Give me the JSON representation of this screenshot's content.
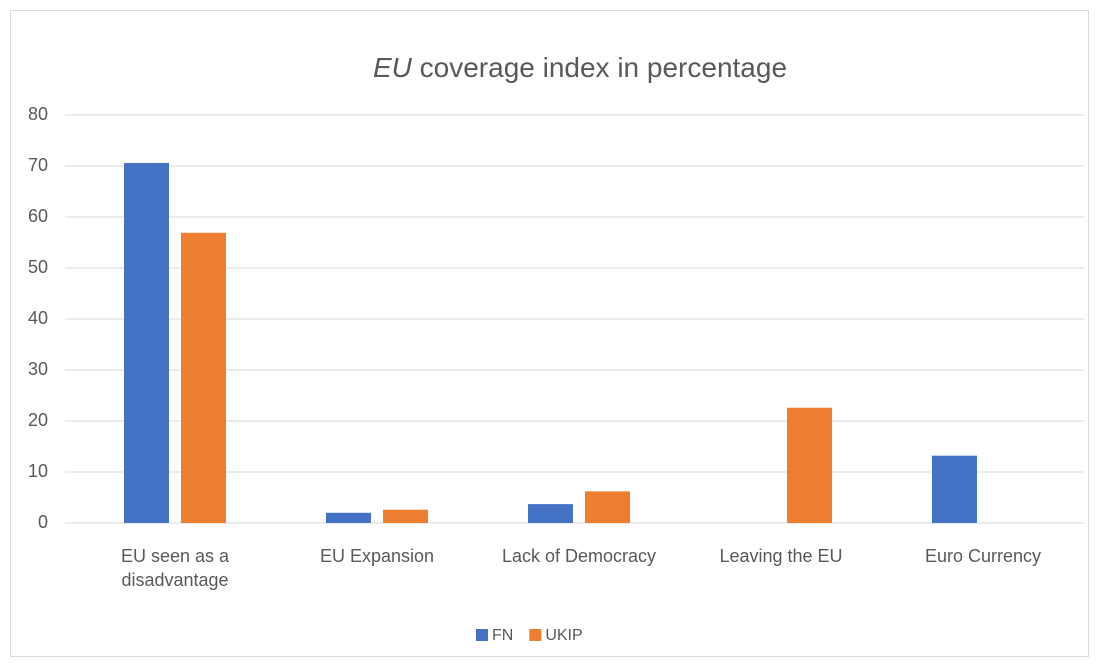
{
  "chart_data": {
    "type": "bar",
    "title": {
      "emphasis": "EU",
      "rest": "coverage index in percentage"
    },
    "categories": [
      "EU seen as a disadvantage",
      "EU Expansion",
      "Lack of Democracy",
      "Leaving the EU",
      "Euro Currency"
    ],
    "series": [
      {
        "name": "FN",
        "color": "#4472c4",
        "values": [
          70.6,
          2,
          3.7,
          0,
          13.2
        ]
      },
      {
        "name": "UKIP",
        "color": "#ed7d31",
        "values": [
          56.9,
          2.6,
          6.2,
          22.6,
          0
        ]
      }
    ],
    "ylim": [
      0,
      80
    ],
    "yticks": [
      0,
      10,
      20,
      30,
      40,
      50,
      60,
      70,
      80
    ],
    "grid": true,
    "legend": "bottom"
  }
}
